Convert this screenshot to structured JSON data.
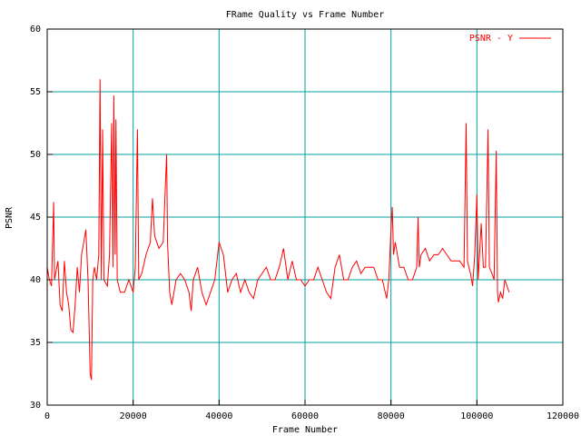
{
  "chart_data": {
    "type": "line",
    "title": "FRame Quality vs Frame Number",
    "x_label": "Frame Number",
    "y_label": "PSNR",
    "xlim": [
      0,
      120000
    ],
    "xticks": [
      0,
      20000,
      40000,
      60000,
      80000,
      100000,
      120000
    ],
    "ylim": [
      30,
      60
    ],
    "yticks": [
      30,
      35,
      40,
      45,
      50,
      55,
      60
    ],
    "grid": true,
    "grid_color": "#00a0a0",
    "legend": "upper right",
    "x": [
      0,
      500,
      1000,
      1500,
      1700,
      2500,
      3000,
      3500,
      4000,
      4500,
      5000,
      5500,
      6000,
      6500,
      7000,
      7500,
      8000,
      8500,
      9000,
      9500,
      10000,
      10300,
      10600,
      11000,
      11500,
      12000,
      12300,
      12600,
      12900,
      13200,
      14000,
      14500,
      15000,
      15300,
      15500,
      15800,
      16000,
      16300,
      17000,
      18000,
      19000,
      20000,
      20500,
      21000,
      21300,
      22000,
      23000,
      24000,
      24500,
      25000,
      26000,
      27000,
      27500,
      27800,
      28000,
      28500,
      29000,
      30000,
      31000,
      32000,
      33000,
      33500,
      34000,
      35000,
      36000,
      37000,
      38000,
      39000,
      40000,
      41000,
      42000,
      43000,
      44000,
      45000,
      46000,
      47000,
      48000,
      49000,
      50000,
      51000,
      52000,
      53000,
      54000,
      55000,
      56000,
      57000,
      58000,
      59000,
      60000,
      61000,
      62000,
      63000,
      64000,
      65000,
      66000,
      67000,
      68000,
      69000,
      70000,
      71000,
      72000,
      73000,
      74000,
      75000,
      76000,
      77000,
      78000,
      79000,
      79500,
      80000,
      80300,
      80600,
      81000,
      82000,
      83000,
      84000,
      85000,
      86000,
      86300,
      86600,
      87000,
      88000,
      89000,
      90000,
      91000,
      92000,
      93000,
      94000,
      95000,
      96000,
      97000,
      97500,
      97800,
      98500,
      99000,
      99500,
      100000,
      100300,
      101000,
      101500,
      102000,
      102600,
      102900,
      103500,
      104000,
      104500,
      104800,
      105000,
      105500,
      106000,
      106500,
      107000,
      107500
    ],
    "series": [
      {
        "name": "PSNR - Y",
        "color": "#ff0000",
        "values": [
          41,
          40,
          39.5,
          46.2,
          40,
          41.5,
          38,
          37.5,
          41.5,
          39,
          38,
          36,
          35.8,
          38,
          41,
          39,
          42,
          43,
          44,
          40,
          32.5,
          32,
          40,
          41,
          40,
          42,
          56,
          40,
          52,
          40,
          39.5,
          42,
          52.5,
          41,
          54.7,
          42,
          52.8,
          40,
          39,
          39,
          40,
          39,
          41,
          52,
          40,
          40.5,
          42,
          43,
          46.5,
          43.5,
          42.5,
          43,
          47.5,
          50,
          43,
          39,
          38,
          40,
          40.5,
          40,
          39,
          37.5,
          40,
          41,
          39,
          38,
          39,
          40,
          43,
          42,
          39,
          40,
          40.5,
          39,
          40,
          39,
          38.5,
          40,
          40.5,
          41,
          40,
          40,
          41,
          42.5,
          40,
          41.5,
          40,
          40,
          39.5,
          40,
          40,
          41,
          40,
          39,
          38.5,
          41,
          42,
          40,
          40,
          41,
          41.5,
          40.5,
          41,
          41,
          41,
          40,
          40,
          38.5,
          40,
          44,
          45.8,
          42,
          43,
          41,
          41,
          40,
          40,
          41,
          45,
          41,
          42,
          42.5,
          41.5,
          42,
          42,
          42.5,
          42,
          41.5,
          41.5,
          41.5,
          41,
          52.5,
          41.5,
          40.5,
          39.5,
          42,
          46.8,
          40,
          44.5,
          41,
          41,
          52,
          41,
          40.5,
          40,
          50.3,
          39,
          38.2,
          39,
          38.5,
          40,
          39.5,
          39
        ]
      }
    ]
  }
}
